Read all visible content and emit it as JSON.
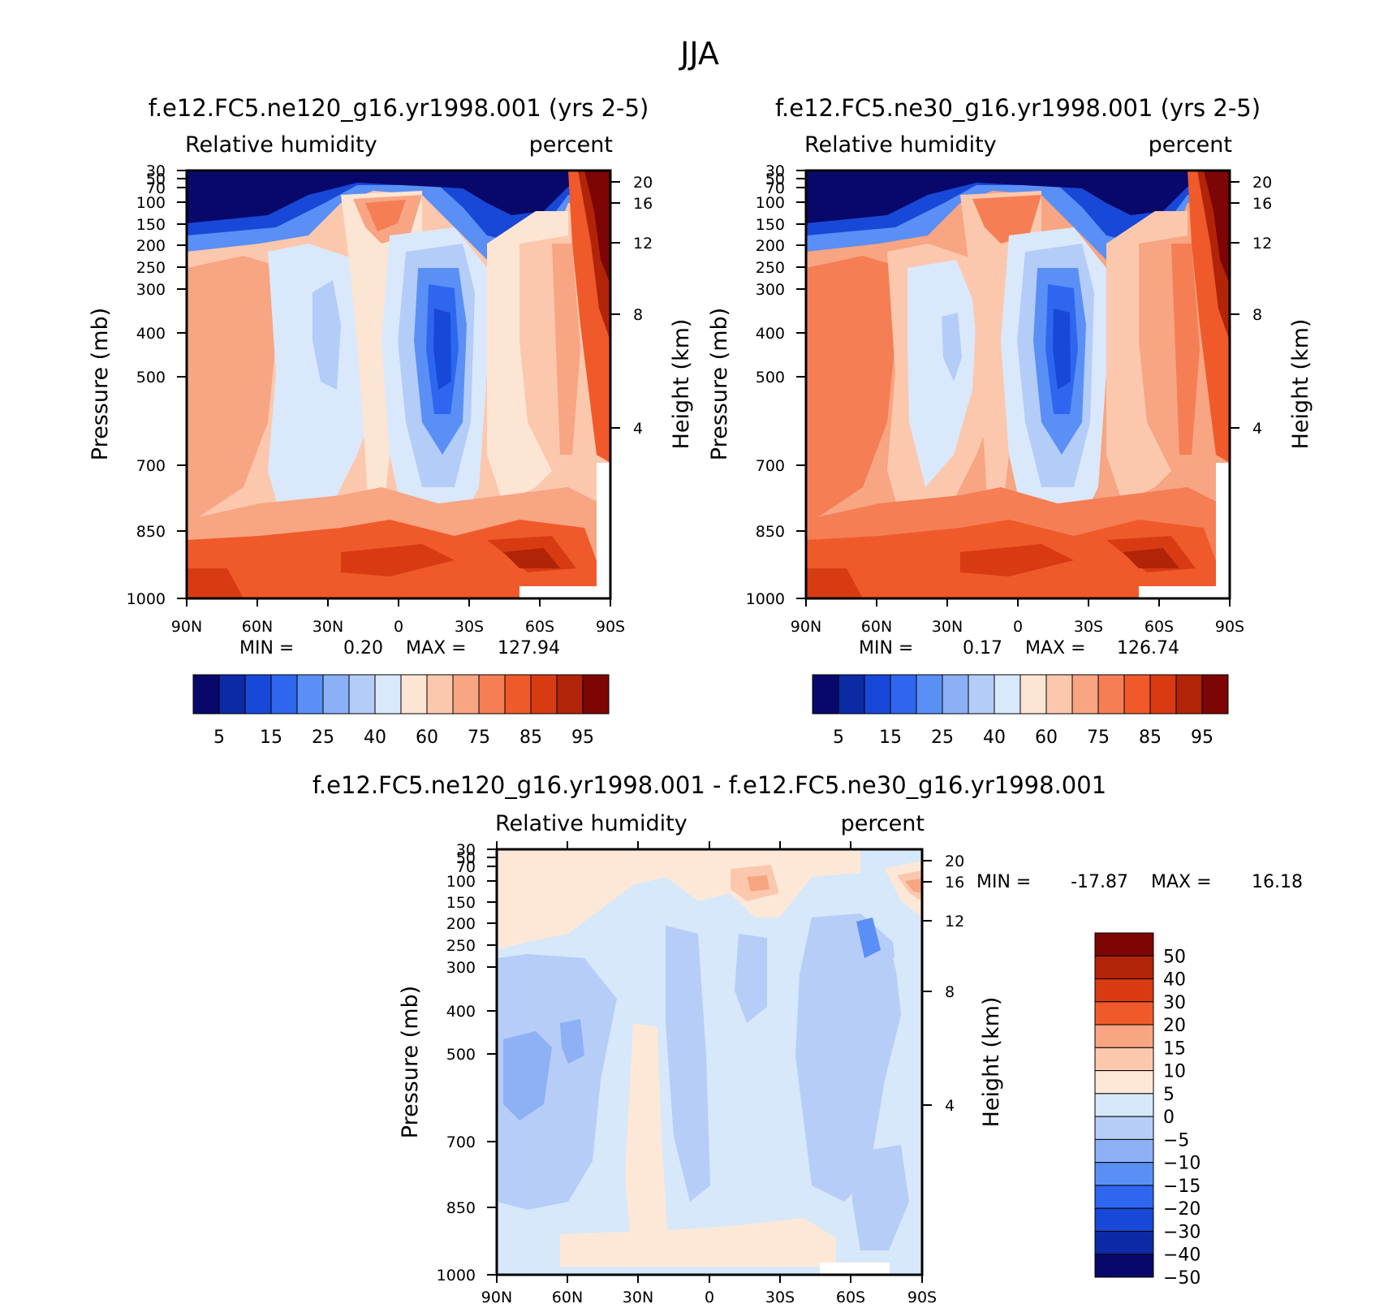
{
  "figure": {
    "title": "JJA"
  },
  "chart_data": [
    {
      "type": "contour",
      "id": "ne120",
      "title": "f.e12.FC5.ne120_g16.yr1998.001 (yrs 2-5)",
      "left_label": "Relative humidity",
      "right_label": "percent",
      "xlabel": "",
      "ylabel": "Pressure (mb)",
      "y2label": "Height (km)",
      "x_ticks": [
        "90N",
        "60N",
        "30N",
        "0",
        "30S",
        "60S",
        "90S"
      ],
      "y_ticks": [
        "30",
        "50",
        "70",
        "100",
        "150",
        "200",
        "250",
        "300",
        "400",
        "500",
        "700",
        "850",
        "1000"
      ],
      "y2_ticks": [
        "20",
        "16",
        "12",
        "8",
        "4"
      ],
      "ylim": [
        1000,
        30
      ],
      "min_label": "MIN =",
      "min_value": "0.20",
      "max_label": "MAX =",
      "max_value": "127.94",
      "colorbar_labels": [
        "5",
        "15",
        "25",
        "40",
        "60",
        "75",
        "85",
        "95"
      ],
      "colorbar_colors": [
        "#08086b",
        "#0c2aa6",
        "#1848d8",
        "#2f66f0",
        "#5a8ff5",
        "#8cb0f5",
        "#b4ccf8",
        "#dae8fb",
        "#fde5d3",
        "#fbc8ae",
        "#f7a582",
        "#f57e55",
        "#f05a2a",
        "#d83b12",
        "#b22408",
        "#7d0505"
      ],
      "structure": {
        "upper_dry_band": "strongly dry above 150 mb except polar southern column",
        "tropical_moist_plume": "moist column near 0-15N from surface to 100 mb",
        "subtropical_dry_core": "minimum near 20S around 400 mb",
        "boundary_layer": "moist near 1000 mb across latitudes"
      }
    },
    {
      "type": "contour",
      "id": "ne30",
      "title": "f.e12.FC5.ne30_g16.yr1998.001 (yrs 2-5)",
      "left_label": "Relative humidity",
      "right_label": "percent",
      "xlabel": "",
      "ylabel": "Pressure (mb)",
      "y2label": "Height (km)",
      "x_ticks": [
        "90N",
        "60N",
        "30N",
        "0",
        "30S",
        "60S",
        "90S"
      ],
      "y_ticks": [
        "30",
        "50",
        "70",
        "100",
        "150",
        "200",
        "250",
        "300",
        "400",
        "500",
        "700",
        "850",
        "1000"
      ],
      "y2_ticks": [
        "20",
        "16",
        "12",
        "8",
        "4"
      ],
      "ylim": [
        1000,
        30
      ],
      "min_label": "MIN =",
      "min_value": "0.17",
      "max_label": "MAX =",
      "max_value": "126.74",
      "colorbar_labels": [
        "5",
        "15",
        "25",
        "40",
        "60",
        "75",
        "85",
        "95"
      ],
      "colorbar_colors": [
        "#08086b",
        "#0c2aa6",
        "#1848d8",
        "#2f66f0",
        "#5a8ff5",
        "#8cb0f5",
        "#b4ccf8",
        "#dae8fb",
        "#fde5d3",
        "#fbc8ae",
        "#f7a582",
        "#f57e55",
        "#f05a2a",
        "#d83b12",
        "#b22408",
        "#7d0505"
      ],
      "structure": {
        "upper_dry_band": "strongly dry above 150 mb except polar southern column",
        "tropical_moist_plume": "moist column near 0-15N from surface to 100 mb",
        "subtropical_dry_core": "minimum near 20S around 400 mb",
        "boundary_layer": "moist near 1000 mb across latitudes"
      }
    },
    {
      "type": "contour",
      "id": "diff",
      "title": "f.e12.FC5.ne120_g16.yr1998.001 - f.e12.FC5.ne30_g16.yr1998.001",
      "left_label": "Relative humidity",
      "right_label": "percent",
      "xlabel": "",
      "ylabel": "Pressure (mb)",
      "y2label": "Height (km)",
      "x_ticks": [
        "90N",
        "60N",
        "30N",
        "0",
        "30S",
        "60S",
        "90S"
      ],
      "y_ticks": [
        "30",
        "50",
        "70",
        "100",
        "150",
        "200",
        "250",
        "300",
        "400",
        "500",
        "700",
        "850",
        "1000"
      ],
      "y2_ticks": [
        "20",
        "16",
        "12",
        "8",
        "4"
      ],
      "ylim": [
        1000,
        30
      ],
      "min_label": "MIN =",
      "min_value": "-17.87",
      "max_label": "MAX =",
      "max_value": "16.18",
      "colorbar_labels": [
        "50",
        "40",
        "30",
        "20",
        "15",
        "10",
        "5",
        "0",
        "-5",
        "-10",
        "-15",
        "-20",
        "-30",
        "-40",
        "-50"
      ],
      "colorbar_colors": [
        "#7d0505",
        "#b22408",
        "#d83b12",
        "#f05a2a",
        "#f7a582",
        "#fbc8ae",
        "#fde8d8",
        "#d6e8fa",
        "#b6cdf8",
        "#8eb0f5",
        "#5a8ff5",
        "#2f66f0",
        "#1848d8",
        "#0c2aa6",
        "#08086b"
      ],
      "structure": {
        "dominant_sign": "mostly slightly negative (-5 to -10)",
        "positive_patches": "upper troposphere near 100 mb at 25S and 90S; near-surface belt 30N-45S",
        "negative_minimum": "-10 to -15 near 60N-70N mid troposphere and 55S at 200 mb"
      }
    }
  ]
}
